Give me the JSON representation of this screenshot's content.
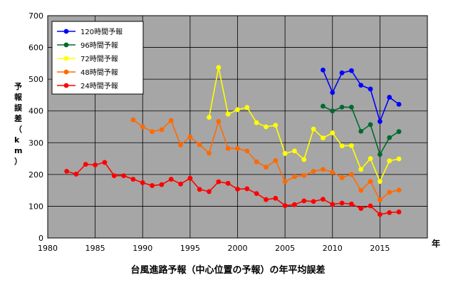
{
  "chart_data": {
    "type": "line",
    "title": "台風進路予報（中心位置の予報）の年平均誤差",
    "xlabel": "年",
    "ylabel": "予報誤差（km）",
    "xlim": [
      1980,
      2020
    ],
    "ylim": [
      0,
      700
    ],
    "x_ticks": [
      1980,
      1985,
      1990,
      1995,
      2000,
      2005,
      2010,
      2015
    ],
    "y_ticks": [
      0,
      100,
      200,
      300,
      400,
      500,
      600,
      700
    ],
    "grid": true,
    "legend_position": "top-left",
    "plot_background": "#a6a6a6",
    "grid_color": "#000000",
    "series": [
      {
        "name": "120時間予報",
        "color": "#0000ff",
        "x": [
          2009,
          2010,
          2011,
          2012,
          2013,
          2014,
          2015,
          2016,
          2017
        ],
        "values": [
          529,
          458,
          520,
          527,
          481,
          469,
          367,
          443,
          421
        ]
      },
      {
        "name": "96時間予報",
        "color": "#006a2e",
        "x": [
          2009,
          2010,
          2011,
          2012,
          2013,
          2014,
          2015,
          2016,
          2017
        ],
        "values": [
          415,
          400,
          412,
          412,
          336,
          357,
          263,
          316,
          335
        ]
      },
      {
        "name": "72時間予報",
        "color": "#ffff00",
        "x": [
          1997,
          1998,
          1999,
          2000,
          2001,
          2002,
          2003,
          2004,
          2005,
          2006,
          2007,
          2008,
          2009,
          2010,
          2011,
          2012,
          2013,
          2014,
          2015,
          2016,
          2017
        ],
        "values": [
          380,
          537,
          390,
          404,
          411,
          363,
          350,
          355,
          266,
          274,
          247,
          343,
          315,
          331,
          290,
          291,
          216,
          250,
          178,
          243,
          249
        ]
      },
      {
        "name": "48時間予報",
        "color": "#ff6a00",
        "x": [
          1989,
          1990,
          1991,
          1992,
          1993,
          1994,
          1995,
          1996,
          1997,
          1998,
          1999,
          2000,
          2001,
          2002,
          2003,
          2004,
          2005,
          2006,
          2007,
          2008,
          2009,
          2010,
          2011,
          2012,
          2013,
          2014,
          2015,
          2016,
          2017
        ],
        "values": [
          372,
          350,
          335,
          341,
          370,
          293,
          318,
          294,
          267,
          367,
          282,
          282,
          274,
          240,
          223,
          244,
          178,
          193,
          197,
          210,
          216,
          207,
          190,
          200,
          150,
          178,
          120,
          144,
          151
        ]
      },
      {
        "name": "24時間予報",
        "color": "#ff0000",
        "x": [
          1982,
          1983,
          1984,
          1985,
          1986,
          1987,
          1988,
          1989,
          1990,
          1991,
          1992,
          1993,
          1994,
          1995,
          1996,
          1997,
          1998,
          1999,
          2000,
          2001,
          2002,
          2003,
          2004,
          2005,
          2006,
          2007,
          2008,
          2009,
          2010,
          2011,
          2012,
          2013,
          2014,
          2015,
          2016,
          2017
        ],
        "values": [
          210,
          201,
          232,
          230,
          238,
          196,
          196,
          185,
          174,
          165,
          168,
          185,
          170,
          188,
          153,
          146,
          177,
          172,
          154,
          155,
          140,
          121,
          125,
          102,
          105,
          117,
          115,
          122,
          106,
          110,
          107,
          93,
          101,
          74,
          80,
          82
        ]
      }
    ]
  }
}
